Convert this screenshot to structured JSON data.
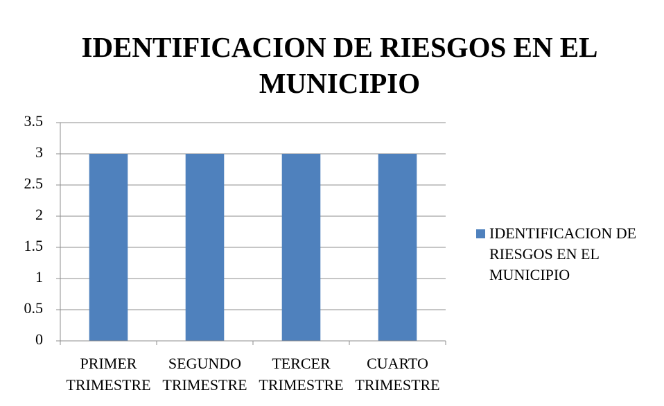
{
  "chart_data": {
    "type": "bar",
    "title": "IDENTIFICACION DE RIESGOS EN EL MUNICIPIO",
    "categories": [
      "PRIMER TRIMESTRE",
      "SEGUNDO TRIMESTRE",
      "TERCER TRIMESTRE",
      "CUARTO TRIMESTRE"
    ],
    "series": [
      {
        "name": "IDENTIFICACION DE RIESGOS EN EL MUNICIPIO",
        "color": "#4f81bd",
        "values": [
          3,
          3,
          3,
          3
        ]
      }
    ],
    "ylim": [
      0,
      3.5
    ],
    "yticks": [
      0,
      0.5,
      1,
      1.5,
      2,
      2.5,
      3,
      3.5
    ],
    "grid": true,
    "legend": "right"
  }
}
